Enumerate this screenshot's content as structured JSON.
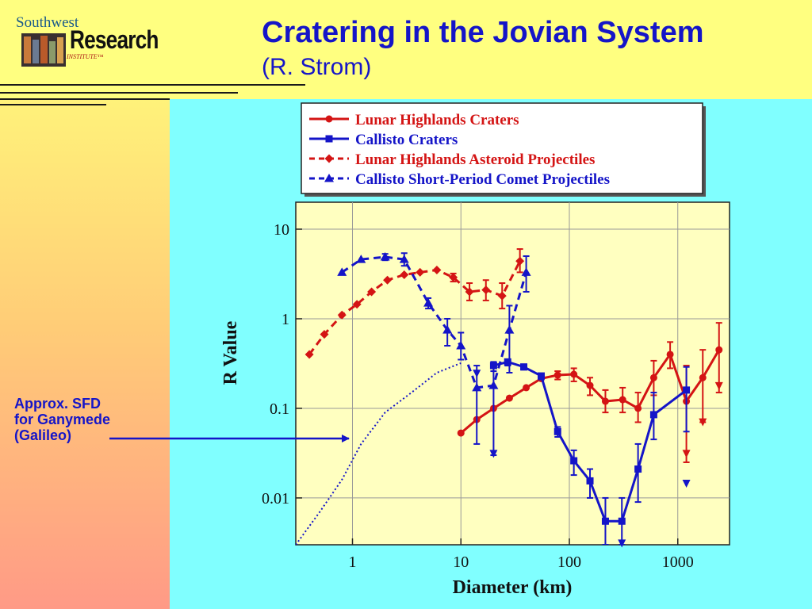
{
  "header": {
    "title": "Cratering in the Jovian System",
    "subtitle": "(R. Strom)"
  },
  "logo": {
    "top_text": "Southwest",
    "main_text": "Research",
    "sub_text": "INSTITUTE™"
  },
  "annotation": {
    "lines": [
      "Approx. SFD",
      "for Ganymede",
      "(Galileo)"
    ]
  },
  "colors": {
    "red": "#d41414",
    "blue": "#1414c8",
    "plot_bg": "#ffffc0",
    "title_blue": "#1515c8"
  },
  "chart_data": {
    "type": "line",
    "xlabel": "Diameter (km)",
    "ylabel": "R Value",
    "xscale": "log",
    "yscale": "log",
    "xlim": [
      0.3,
      3000
    ],
    "ylim": [
      0.003,
      20
    ],
    "xticks": [
      1,
      10,
      100,
      1000
    ],
    "xtick_labels": [
      "1",
      "10",
      "100",
      "1000"
    ],
    "yticks": [
      0.01,
      0.1,
      1,
      10
    ],
    "ytick_labels": [
      "0.01",
      "0.1",
      "1",
      "10"
    ],
    "grid": true,
    "legend_position": "top",
    "series": [
      {
        "name": "Lunar Highlands Craters",
        "color": "#d41414",
        "dash": false,
        "marker": "circle",
        "x": [
          10,
          14,
          20,
          28,
          40,
          55,
          78,
          110,
          155,
          215,
          310,
          430,
          600,
          850,
          1200,
          1700,
          2400
        ],
        "y": [
          0.053,
          0.075,
          0.1,
          0.13,
          0.17,
          0.215,
          0.235,
          0.24,
          0.18,
          0.12,
          0.125,
          0.1,
          0.22,
          0.4,
          0.12,
          0.22,
          0.45
        ],
        "err_up": [
          0.053,
          0.075,
          0.1,
          0.13,
          0.17,
          0.215,
          0.26,
          0.28,
          0.22,
          0.16,
          0.17,
          0.15,
          0.34,
          0.55,
          0.3,
          0.45,
          0.9
        ],
        "err_down": [
          0.053,
          0.075,
          0.1,
          0.13,
          0.17,
          0.215,
          0.21,
          0.2,
          0.14,
          0.09,
          0.09,
          0.07,
          0.14,
          0.28,
          0.025,
          0.07,
          0.15
        ]
      },
      {
        "name": "Callisto Craters",
        "color": "#1414c8",
        "dash": false,
        "marker": "square",
        "x": [
          20,
          27,
          38,
          55,
          78,
          110,
          155,
          215,
          305,
          430,
          600,
          1200
        ],
        "y": [
          0.3,
          0.33,
          0.29,
          0.23,
          0.055,
          0.026,
          0.0155,
          0.0055,
          0.0055,
          0.021,
          0.085,
          0.16
        ],
        "err_up": [
          0.33,
          0.35,
          0.31,
          0.24,
          0.062,
          0.034,
          0.021,
          0.01,
          0.01,
          0.04,
          0.15,
          0.29
        ],
        "err_down": [
          0.26,
          0.3,
          0.27,
          0.21,
          0.048,
          0.018,
          0.01,
          0.003,
          0.003,
          0.009,
          0.045,
          0.055
        ]
      },
      {
        "name": "Lunar Highlands Asteroid Projectiles",
        "color": "#d41414",
        "dash": true,
        "marker": "diamond",
        "x": [
          0.4,
          0.55,
          0.8,
          1.1,
          1.5,
          2.1,
          3.0,
          4.2,
          6.0,
          8.5,
          12,
          17,
          24,
          35
        ],
        "y": [
          0.4,
          0.67,
          1.1,
          1.45,
          2.0,
          2.7,
          3.1,
          3.3,
          3.5,
          2.9,
          2.0,
          2.1,
          1.8,
          4.4
        ],
        "err_up": [
          0.4,
          0.67,
          1.1,
          1.45,
          2.0,
          2.7,
          3.1,
          3.3,
          3.5,
          3.2,
          2.5,
          2.7,
          2.5,
          6.0
        ],
        "err_down": [
          0.4,
          0.67,
          1.1,
          1.45,
          2.0,
          2.7,
          3.1,
          3.3,
          3.5,
          2.6,
          1.6,
          1.6,
          1.3,
          3.3
        ],
        "arrow_down_x": []
      },
      {
        "name": "Callisto Short-Period Comet Projectiles",
        "color": "#1414c8",
        "dash": true,
        "marker": "triangle",
        "x": [
          0.8,
          1.2,
          2.0,
          3.0,
          5.0,
          7.5,
          10,
          14,
          20,
          28,
          40
        ],
        "y": [
          3.3,
          4.6,
          4.9,
          4.6,
          1.5,
          0.75,
          0.5,
          0.17,
          0.18,
          0.75,
          3.3
        ],
        "err_up": [
          3.3,
          4.6,
          5.3,
          5.4,
          1.7,
          1.0,
          0.7,
          0.3,
          0.28,
          1.4,
          5.0
        ],
        "err_down": [
          3.3,
          4.6,
          4.5,
          3.9,
          1.3,
          0.5,
          0.35,
          0.04,
          0.03,
          0.25,
          2.0
        ]
      },
      {
        "name": "Approx. SFD for Ganymede (Galileo)",
        "color": "#1414c8",
        "dash": "dotted",
        "marker": "none",
        "x": [
          0.3,
          0.5,
          0.8,
          1.2,
          2.0,
          3.5,
          6.0,
          10
        ],
        "y": [
          0.003,
          0.007,
          0.016,
          0.04,
          0.09,
          0.15,
          0.25,
          0.32
        ]
      }
    ]
  }
}
